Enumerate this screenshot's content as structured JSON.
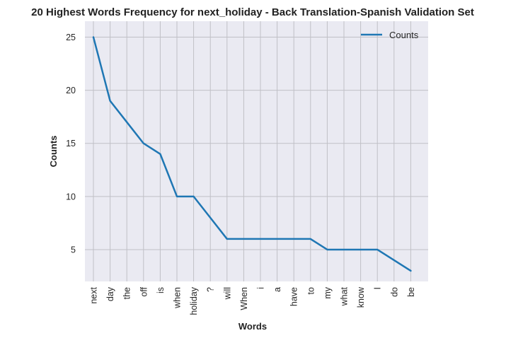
{
  "chart_data": {
    "type": "line",
    "title": "20 Highest Words Frequency for next_holiday - Back Translation-Spanish Validation Set",
    "xlabel": "Words",
    "ylabel": "Counts",
    "categories": [
      "next",
      "day",
      "the",
      "off",
      "is",
      "when",
      "holiday",
      "?",
      "will",
      "When",
      "i",
      "a",
      "have",
      "to",
      "my",
      "what",
      "know",
      "I",
      "do",
      "be"
    ],
    "series": [
      {
        "name": "Counts",
        "values": [
          25,
          19,
          17,
          15,
          14,
          10,
          10,
          8,
          6,
          6,
          6,
          6,
          6,
          6,
          5,
          5,
          5,
          5,
          4,
          3
        ],
        "color": "#1f77b4"
      }
    ],
    "ylim": [
      2,
      26.5
    ],
    "yticks": [
      5,
      10,
      15,
      20,
      25
    ],
    "grid": true,
    "legend_position": "top-right",
    "background_color": "#eaeaf2",
    "grid_color": "#c0c0c6"
  }
}
